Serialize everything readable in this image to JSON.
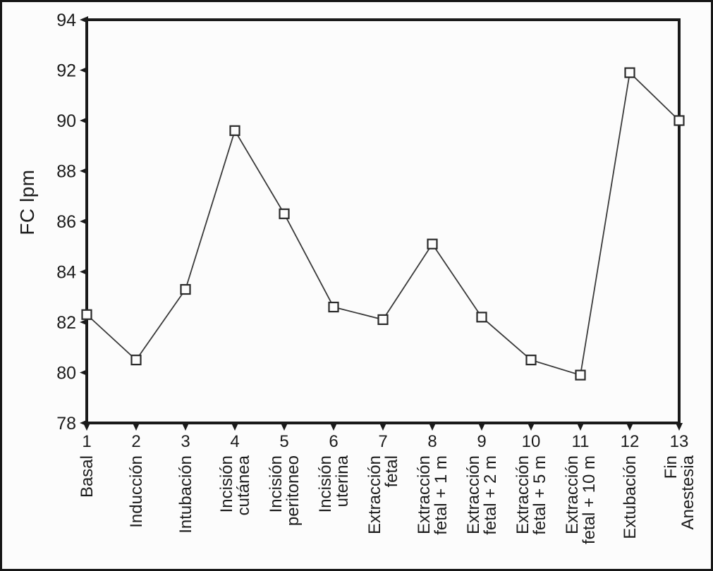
{
  "figure": {
    "background": "#fcfcfc",
    "frame_color": "#161616",
    "axis_color": "#1a1a1a",
    "text_color": "#1c1c1c",
    "line_color": "#3a3a3a",
    "marker_fill": "#fdfdfd",
    "marker_stroke": "#2a2a2a"
  },
  "chart_data": {
    "type": "line",
    "title": "",
    "xlabel": "",
    "ylabel": "FC lpm",
    "ylim": [
      78,
      94
    ],
    "yticks": [
      78,
      80,
      82,
      84,
      86,
      88,
      90,
      92,
      94
    ],
    "ytick_step": 2,
    "grid": false,
    "legend": "none",
    "marker": "open-square",
    "line_style": "solid",
    "x_numbers": [
      "1",
      "2",
      "3",
      "4",
      "5",
      "6",
      "7",
      "8",
      "9",
      "10",
      "11",
      "12",
      "13"
    ],
    "categories": [
      "Basal",
      "Inducción",
      "Intubación",
      "Incisión cutánea",
      "Incisión peritoneo",
      "Incisión uterina",
      "Extracción fetal",
      "Extracción fetal + 1 m",
      "Extracción fetal + 2 m",
      "Extracción fetal + 5 m",
      "Extracción fetal + 10 m",
      "Extubación",
      "Fin Anestesia"
    ],
    "category_lines": [
      [
        "Basal"
      ],
      [
        "Inducción"
      ],
      [
        "Intubación"
      ],
      [
        "Incisión",
        "cutánea"
      ],
      [
        "Incisión",
        "peritoneo"
      ],
      [
        "Incisión",
        "uterina"
      ],
      [
        "Extracción",
        "fetal"
      ],
      [
        "Extracción",
        "fetal + 1 m"
      ],
      [
        "Extracción",
        "fetal + 2 m"
      ],
      [
        "Extracción",
        "fetal + 5 m"
      ],
      [
        "Extracción",
        "fetal + 10 m"
      ],
      [
        "Extubación"
      ],
      [
        "Fin",
        "Anestesia"
      ]
    ],
    "series": [
      {
        "name": "FC",
        "values": [
          82.3,
          80.5,
          83.3,
          89.6,
          86.3,
          82.6,
          82.1,
          85.1,
          82.2,
          80.5,
          79.9,
          91.9,
          90.0
        ]
      }
    ]
  }
}
